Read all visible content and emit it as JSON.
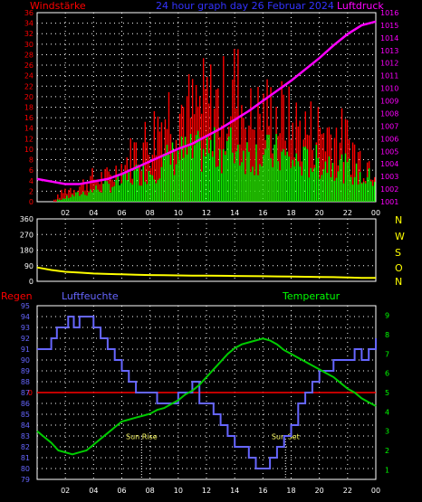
{
  "header": {
    "left": "Windstärke",
    "center": "24 hour graph day  26 Februar 2024",
    "right": "Luftdruck"
  },
  "colors": {
    "wind_gust": "#ff0000",
    "wind_avg": "#00ff00",
    "pressure": "#ff00ff",
    "direction": "#ffff00",
    "humidity": "#6666ff",
    "temperature": "#00cc00",
    "rain": "#ff0000",
    "axis_left": "#ff0000",
    "axis_right": "#ff00ff",
    "axis_hum": "#6666ff",
    "axis_temp": "#00ff00"
  },
  "chart_data": [
    {
      "type": "bar",
      "title": "24 hour graph day  26 Februar 2024",
      "ylabel": "Windstärke",
      "y2label": "Luftdruck",
      "ylim": [
        0,
        36
      ],
      "y2lim": [
        1001,
        1016
      ],
      "x_ticks": [
        "02",
        "04",
        "06",
        "08",
        "10",
        "12",
        "14",
        "16",
        "18",
        "20",
        "22",
        "00"
      ],
      "y_ticks": [
        0,
        2,
        4,
        6,
        8,
        10,
        12,
        14,
        16,
        18,
        20,
        22,
        24,
        26,
        28,
        30,
        32,
        34,
        36
      ],
      "y2_ticks": [
        1001,
        1002,
        1003,
        1004,
        1005,
        1006,
        1007,
        1008,
        1009,
        1010,
        1011,
        1012,
        1013,
        1014,
        1015,
        1016
      ],
      "series": [
        {
          "name": "Windstärke",
          "kind": "wind_gust",
          "x": [
            0,
            1,
            2,
            3,
            4,
            5,
            6,
            7,
            8,
            9,
            10,
            11,
            12,
            13,
            14,
            15,
            16,
            17,
            18,
            19,
            20,
            21,
            22,
            23,
            24
          ],
          "values": [
            0,
            0,
            3,
            4,
            6,
            6,
            9,
            13,
            16,
            22,
            24,
            22,
            25,
            24,
            29,
            20,
            22,
            22,
            19,
            18,
            18,
            17,
            15,
            10,
            10
          ]
        },
        {
          "name": "Windstärke",
          "kind": "wind_avg",
          "x": [
            0,
            1,
            2,
            3,
            4,
            5,
            6,
            7,
            8,
            9,
            10,
            11,
            12,
            13,
            14,
            15,
            16,
            17,
            18,
            19,
            20,
            21,
            22,
            23,
            24
          ],
          "values": [
            0,
            0,
            1,
            2,
            3,
            4,
            5,
            7,
            8,
            10,
            12,
            12,
            13,
            13,
            14,
            12,
            12,
            12,
            10,
            10,
            10,
            10,
            8,
            6,
            6
          ]
        },
        {
          "name": "Luftdruck",
          "kind": "pressure",
          "x": [
            0,
            1,
            2,
            3,
            4,
            5,
            6,
            7,
            8,
            9,
            10,
            11,
            12,
            13,
            14,
            15,
            16,
            17,
            18,
            19,
            20,
            21,
            22,
            23,
            24
          ],
          "values": [
            1002.8,
            1002.6,
            1002.4,
            1002.4,
            1002.6,
            1002.8,
            1003.2,
            1003.7,
            1004.2,
            1004.7,
            1005.2,
            1005.6,
            1006.2,
            1006.8,
            1007.5,
            1008.2,
            1009.0,
            1009.8,
            1010.6,
            1011.5,
            1012.4,
            1013.4,
            1014.3,
            1015.0,
            1015.3
          ]
        }
      ]
    },
    {
      "type": "line",
      "ylim": [
        0,
        360
      ],
      "y_ticks": [
        0,
        90,
        180,
        270,
        360
      ],
      "compass": [
        "N",
        "W",
        "S",
        "O",
        "N"
      ],
      "series": [
        {
          "name": "direction",
          "x": [
            0,
            1,
            2,
            3,
            4,
            5,
            6,
            7,
            8,
            9,
            10,
            11,
            12,
            13,
            14,
            15,
            16,
            17,
            18,
            19,
            20,
            21,
            22,
            23,
            24
          ],
          "values": [
            80,
            65,
            55,
            50,
            45,
            42,
            40,
            38,
            36,
            35,
            34,
            33,
            33,
            32,
            31,
            30,
            29,
            28,
            27,
            26,
            25,
            24,
            22,
            20,
            20
          ]
        }
      ]
    },
    {
      "type": "line",
      "labels": {
        "left": "Regen",
        "mid": "Luftfeuchte",
        "right": "Temperatur"
      },
      "ylim": [
        79,
        95
      ],
      "y2lim": [
        0.5,
        9.5
      ],
      "y_ticks": [
        79,
        80,
        81,
        82,
        83,
        84,
        85,
        86,
        87,
        88,
        89,
        90,
        91,
        92,
        93,
        94,
        95
      ],
      "y2_ticks": [
        1,
        2,
        3,
        4,
        5,
        6,
        7,
        8,
        9
      ],
      "rain_label": "0",
      "x_ticks": [
        "02",
        "04",
        "06",
        "08",
        "10",
        "12",
        "14",
        "16",
        "18",
        "20",
        "22",
        "00"
      ],
      "annotations": [
        {
          "text": "Sun Rise",
          "x": 7.4
        },
        {
          "text": "Sun Set",
          "x": 17.6
        }
      ],
      "series": [
        {
          "name": "Luftfeuchte",
          "kind": "humidity",
          "step": true,
          "x": [
            0,
            1,
            1.4,
            1.8,
            2.2,
            2.6,
            3,
            3.5,
            4,
            4.5,
            5,
            5.5,
            6,
            6.5,
            7,
            7.5,
            8,
            8.5,
            9,
            9.5,
            10,
            10.5,
            11,
            11.5,
            12,
            12.5,
            13,
            13.5,
            14,
            14.5,
            15,
            15.5,
            16,
            16.5,
            17,
            17.5,
            18,
            18.5,
            19,
            19.5,
            20,
            21,
            22,
            22.5,
            23,
            23.5,
            24
          ],
          "values": [
            91,
            92,
            93,
            93,
            94,
            93,
            94,
            94,
            93,
            92,
            91,
            90,
            89,
            88,
            87,
            87,
            87,
            86,
            86,
            86,
            87,
            87,
            88,
            86,
            86,
            85,
            84,
            83,
            82,
            82,
            81,
            80,
            80,
            81,
            82,
            83,
            84,
            86,
            87,
            88,
            89,
            90,
            90,
            91,
            90,
            91,
            92
          ]
        },
        {
          "name": "Temperatur",
          "kind": "temperature",
          "x": [
            0,
            0.5,
            1,
            1.5,
            2,
            2.5,
            3,
            3.5,
            4,
            4.5,
            5,
            5.5,
            6,
            6.5,
            7,
            7.5,
            8,
            8.5,
            9,
            9.5,
            10,
            10.5,
            11,
            11.5,
            12,
            12.5,
            13,
            13.5,
            14,
            14.5,
            15,
            15.5,
            16,
            16.5,
            17,
            17.5,
            18,
            18.5,
            19,
            19.5,
            20,
            20.5,
            21,
            21.5,
            22,
            22.5,
            23,
            23.5,
            24
          ],
          "values": [
            3.0,
            2.7,
            2.4,
            2.0,
            1.9,
            1.8,
            1.9,
            2.0,
            2.3,
            2.6,
            2.9,
            3.2,
            3.5,
            3.6,
            3.7,
            3.8,
            3.9,
            4.1,
            4.2,
            4.4,
            4.6,
            4.9,
            5.1,
            5.4,
            5.8,
            6.2,
            6.6,
            7.0,
            7.3,
            7.5,
            7.6,
            7.7,
            7.8,
            7.7,
            7.5,
            7.2,
            7.0,
            6.8,
            6.6,
            6.4,
            6.2,
            6.0,
            5.8,
            5.5,
            5.2,
            5.0,
            4.7,
            4.5,
            4.3
          ]
        }
      ]
    }
  ]
}
